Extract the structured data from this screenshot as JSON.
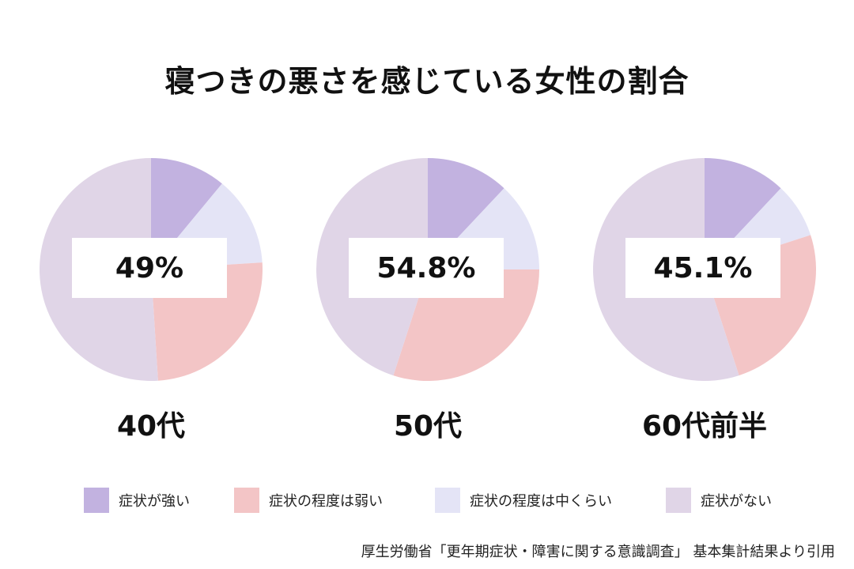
{
  "title": "寝つきの悪さを感じている女性の割合",
  "colors": {
    "strong": "#c2b2e0",
    "mild": "#f3c5c6",
    "moderate": "#e4e4f6",
    "none": "#e0d5e7"
  },
  "chart_data": {
    "type": "pie",
    "title": "寝つきの悪さを感じている女性の割合",
    "categories": [
      "症状が強い",
      "症状の程度は中くらい",
      "症状の程度は弱い",
      "症状がない"
    ],
    "charts": [
      {
        "label": "40代",
        "total_text": "49%",
        "values": [
          11,
          13,
          25,
          51
        ]
      },
      {
        "label": "50代",
        "total_text": "54.8%",
        "values": [
          12,
          13,
          30,
          45
        ]
      },
      {
        "label": "60代前半",
        "total_text": "45.1%",
        "values": [
          12,
          8,
          25,
          55
        ]
      }
    ]
  },
  "legend": [
    {
      "label": "症状が強い",
      "color_key": "strong"
    },
    {
      "label": "症状の程度は弱い",
      "color_key": "mild"
    },
    {
      "label": "症状の程度は中くらい",
      "color_key": "moderate"
    },
    {
      "label": "症状がない",
      "color_key": "none"
    }
  ],
  "source": "厚生労働省「更年期症状・障害に関する意識調査」 基本集計結果より引用"
}
